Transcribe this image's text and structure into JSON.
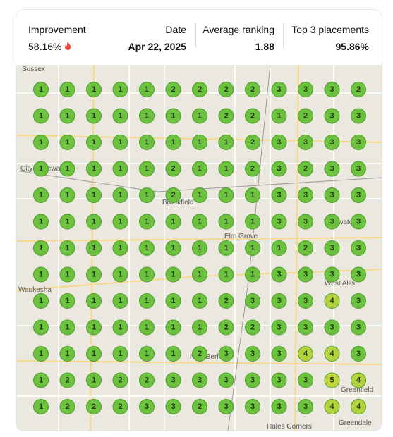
{
  "header": {
    "improvement": {
      "label": "Improvement",
      "value": "58.16%"
    },
    "date": {
      "label": "Date",
      "value": "Apr 22, 2025"
    },
    "average_ranking": {
      "label": "Average ranking",
      "value": "1.88"
    },
    "top3": {
      "label": "Top 3 placements",
      "value": "95.86%"
    }
  },
  "map": {
    "labels": [
      "Sussex",
      "City of Pewaukee",
      "Brookfield",
      "Elm Grove",
      "Waukesha",
      "New Berlin",
      "West Allis",
      "Wauwatosa",
      "Greenfield",
      "Greendale",
      "Hales Corners"
    ]
  },
  "grid": {
    "marker_colors": [
      "#6cc23f",
      "#6cc23f",
      "#6cc23f",
      "#b4d23e",
      "#c3d63c"
    ],
    "rows": [
      [
        1,
        1,
        1,
        1,
        1,
        2,
        2,
        2,
        2,
        3,
        3,
        3,
        2
      ],
      [
        1,
        1,
        1,
        1,
        1,
        1,
        1,
        2,
        2,
        1,
        2,
        3,
        3
      ],
      [
        1,
        1,
        1,
        1,
        1,
        1,
        1,
        1,
        2,
        3,
        3,
        3,
        3
      ],
      [
        1,
        1,
        1,
        1,
        1,
        2,
        1,
        1,
        2,
        3,
        2,
        3,
        3
      ],
      [
        1,
        1,
        1,
        1,
        1,
        2,
        1,
        1,
        1,
        3,
        3,
        3,
        3
      ],
      [
        1,
        1,
        1,
        1,
        1,
        1,
        1,
        1,
        1,
        3,
        3,
        3,
        3
      ],
      [
        1,
        1,
        1,
        1,
        1,
        1,
        1,
        1,
        1,
        1,
        2,
        3,
        3
      ],
      [
        1,
        1,
        1,
        1,
        1,
        1,
        1,
        1,
        1,
        3,
        3,
        3,
        3
      ],
      [
        1,
        1,
        1,
        1,
        1,
        1,
        1,
        2,
        3,
        3,
        3,
        4,
        3
      ],
      [
        1,
        1,
        1,
        1,
        1,
        1,
        1,
        2,
        2,
        3,
        3,
        3,
        3
      ],
      [
        1,
        1,
        1,
        1,
        1,
        1,
        2,
        3,
        3,
        3,
        4,
        4,
        3
      ],
      [
        1,
        2,
        1,
        2,
        2,
        3,
        3,
        3,
        3,
        3,
        3,
        5,
        4
      ],
      [
        1,
        2,
        2,
        2,
        3,
        3,
        2,
        3,
        3,
        3,
        3,
        4,
        4
      ]
    ]
  }
}
